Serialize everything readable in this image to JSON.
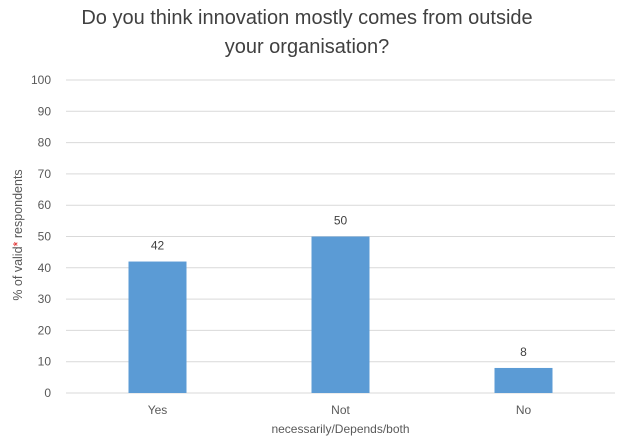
{
  "chart_data": {
    "type": "bar",
    "title_lines": [
      "Do you think innovation mostly comes from outside",
      "your organisation?"
    ],
    "categories": [
      [
        "Yes"
      ],
      [
        "Not",
        "necessarily/Depends/both"
      ],
      [
        "No"
      ]
    ],
    "values": [
      42,
      50,
      8
    ],
    "data_labels": [
      "42",
      "50",
      "8"
    ],
    "ylabel": {
      "before": "% of  valid",
      "star": "*",
      "after": " respondents"
    },
    "ylim": [
      0,
      100
    ],
    "yticks": [
      "0",
      "10",
      "20",
      "30",
      "40",
      "50",
      "60",
      "70",
      "80",
      "90",
      "100"
    ],
    "grid": true,
    "bar_color": "#5b9bd5",
    "star_color": "#e02020",
    "grid_color": "#d9d9d9"
  }
}
